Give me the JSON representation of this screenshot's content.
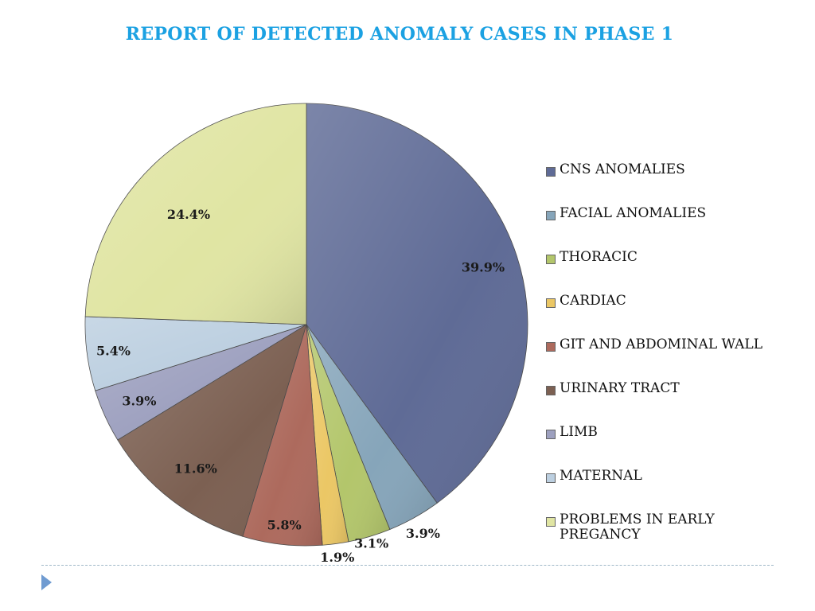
{
  "chart_data": {
    "type": "pie",
    "title": "REPORT OF DETECTED ANOMALY CASES IN PHASE 1",
    "categories": [
      "CNS ANOMALIES",
      "FACIAL ANOMALIES",
      "THORACIC",
      "CARDIAC",
      "GIT AND ABDOMINAL WALL",
      "URINARY TRACT",
      "LIMB",
      "MATERNAL",
      "PROBLEMS IN EARLY PREGANCY"
    ],
    "values": [
      39.9,
      3.9,
      3.1,
      1.9,
      5.8,
      11.6,
      3.9,
      5.4,
      24.4
    ],
    "labels": [
      "39.9%",
      "3.9%",
      "3.1%",
      "1.9%",
      "5.8%",
      "11.6%",
      "3.9%",
      "5.4%",
      "24.4%"
    ],
    "colors": [
      "#5f6b96",
      "#86a5ba",
      "#b3c66b",
      "#ebc765",
      "#ad6a5d",
      "#7c6052",
      "#9da0bf",
      "#bccfe0",
      "#e0e5a3"
    ],
    "legend_position": "right",
    "start_angle": "12 o'clock, clockwise"
  }
}
